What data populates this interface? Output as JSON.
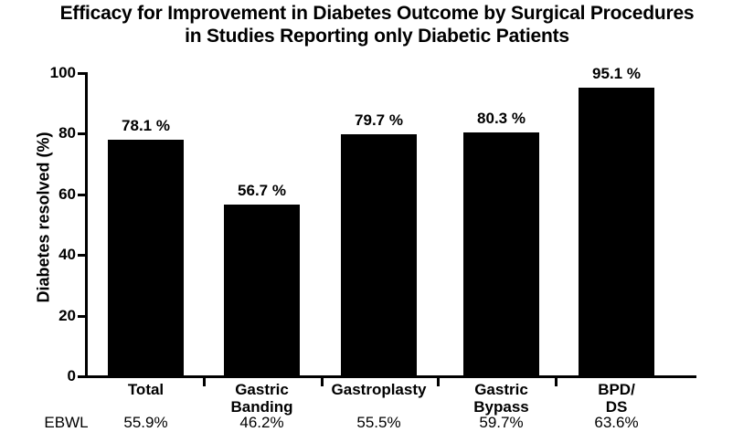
{
  "title": {
    "line1": "Efficacy for Improvement in Diabetes Outcome by Surgical Procedures",
    "line2": "in Studies Reporting only Diabetic Patients"
  },
  "chart_data": {
    "type": "bar",
    "title": "Efficacy for Improvement in Diabetes Outcome by Surgical Procedures in Studies Reporting only Diabetic Patients",
    "ylabel": "Diabetes resolved (%)",
    "xlabel": "",
    "ylim": [
      0,
      100
    ],
    "yticks": [
      0,
      20,
      40,
      60,
      80,
      100
    ],
    "grid": false,
    "legend": "none",
    "bar_color": "#000000",
    "background_color": "#ffffff",
    "categories": [
      "Total",
      "Gastric\nBanding",
      "Gastroplasty",
      "Gastric\nBypass",
      "BPD/\nDS"
    ],
    "values": [
      78.1,
      56.7,
      79.7,
      80.3,
      95.1
    ],
    "bar_labels": [
      "78.1 %",
      "56.7 %",
      "79.7 %",
      "80.3 %",
      "95.1 %"
    ],
    "footer": {
      "label": "EBWL",
      "values": [
        "55.9%",
        "46.2%",
        "55.5%",
        "59.7%",
        "63.6%"
      ]
    }
  }
}
